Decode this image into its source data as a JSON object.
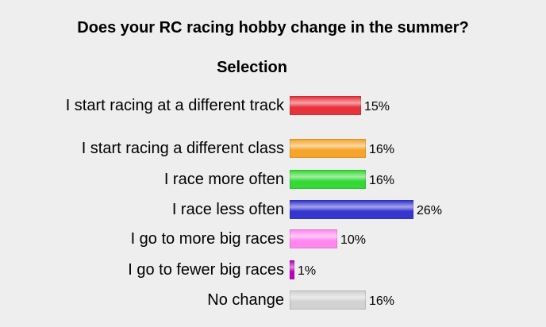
{
  "chart_data": {
    "type": "bar",
    "orientation": "horizontal",
    "title": "Does your RC racing hobby change in the summer?",
    "category_header": "Selection",
    "categories": [
      "I start racing at a different track",
      "I start racing a different class",
      "I race more often",
      "I race less often",
      "I go to more big races",
      "I go to fewer big races",
      "No change"
    ],
    "values": [
      15,
      16,
      16,
      26,
      10,
      1,
      16
    ],
    "value_labels": [
      "15%",
      "16%",
      "16%",
      "26%",
      "10%",
      "1%",
      "16%"
    ],
    "colors": [
      "#e8323c",
      "#f5a52a",
      "#35d935",
      "#3535d0",
      "#ff88ee",
      "#c000c0",
      "#d2d2d2"
    ]
  }
}
